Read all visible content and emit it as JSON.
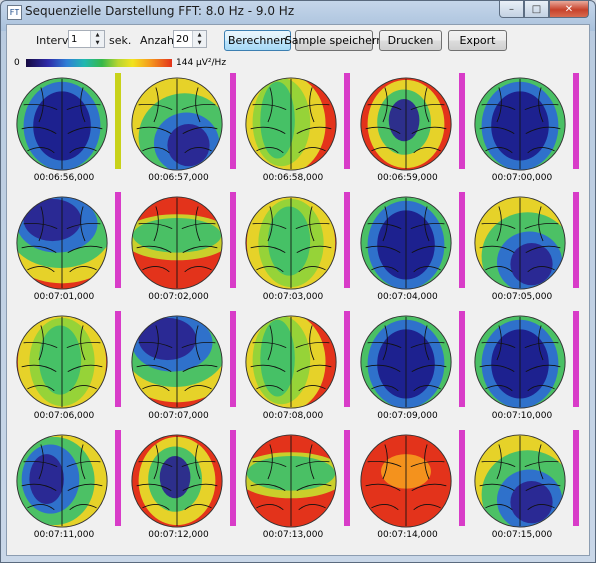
{
  "window": {
    "title": "Sequenzielle Darstellung FFT: 8.0 Hz - 9.0 Hz",
    "app_icon": "eeg-app-icon",
    "controls": {
      "minimize": "–",
      "maximize": "□",
      "close": "✕"
    }
  },
  "toolbar": {
    "intervall_label": "Intervall",
    "intervall_value": "1",
    "intervall_unit": "sek.",
    "anzahl_label": "Anzahl",
    "anzahl_value": "20",
    "buttons": {
      "berechnen": "Berechnen",
      "sample_speichern": "Sample speichern",
      "drucken": "Drucken",
      "export": "Export"
    }
  },
  "scale": {
    "min_label": "0",
    "max_label": "144 µV²/Hz",
    "colors": [
      "#150a40",
      "#2e2aa8",
      "#2f7fd6",
      "#20b7b0",
      "#36b84a",
      "#b7d530",
      "#f2e31f",
      "#f59a1d",
      "#e3331b"
    ]
  },
  "maps": [
    {
      "time": "00:06:56,000",
      "pattern": "center-blue",
      "side": "#c8d21a"
    },
    {
      "time": "00:06:57,000",
      "pattern": "low-right-blue",
      "side": "#d83cc8"
    },
    {
      "time": "00:06:58,000",
      "pattern": "left-green",
      "side": "#d83cc8"
    },
    {
      "time": "00:06:59,000",
      "pattern": "small-blue",
      "side": "#d83cc8"
    },
    {
      "time": "00:07:00,000",
      "pattern": "center-blue",
      "side": "#d83cc8"
    },
    {
      "time": "00:07:01,000",
      "pattern": "top-blue",
      "side": "#d83cc8"
    },
    {
      "time": "00:07:02,000",
      "pattern": "band-green",
      "side": "#d83cc8"
    },
    {
      "time": "00:07:03,000",
      "pattern": "center-green",
      "side": "#d83cc8"
    },
    {
      "time": "00:07:04,000",
      "pattern": "center-blue",
      "side": "#d83cc8"
    },
    {
      "time": "00:07:05,000",
      "pattern": "low-right-blue",
      "side": "#d83cc8"
    },
    {
      "time": "00:07:06,000",
      "pattern": "center-green",
      "side": "#d83cc8"
    },
    {
      "time": "00:07:07,000",
      "pattern": "top-blue",
      "side": "#d83cc8"
    },
    {
      "time": "00:07:08,000",
      "pattern": "left-green",
      "side": "#d83cc8"
    },
    {
      "time": "00:07:09,000",
      "pattern": "center-blue",
      "side": "#d83cc8"
    },
    {
      "time": "00:07:10,000",
      "pattern": "center-blue",
      "side": "#d83cc8"
    },
    {
      "time": "00:07:11,000",
      "pattern": "left-blue",
      "side": "#d83cc8"
    },
    {
      "time": "00:07:12,000",
      "pattern": "small-blue",
      "side": "#d83cc8"
    },
    {
      "time": "00:07:13,000",
      "pattern": "band-green",
      "side": "#d83cc8"
    },
    {
      "time": "00:07:14,000",
      "pattern": "all-red",
      "side": "#d83cc8"
    },
    {
      "time": "00:07:15,000",
      "pattern": "low-right-blue",
      "side": "#d83cc8"
    }
  ]
}
